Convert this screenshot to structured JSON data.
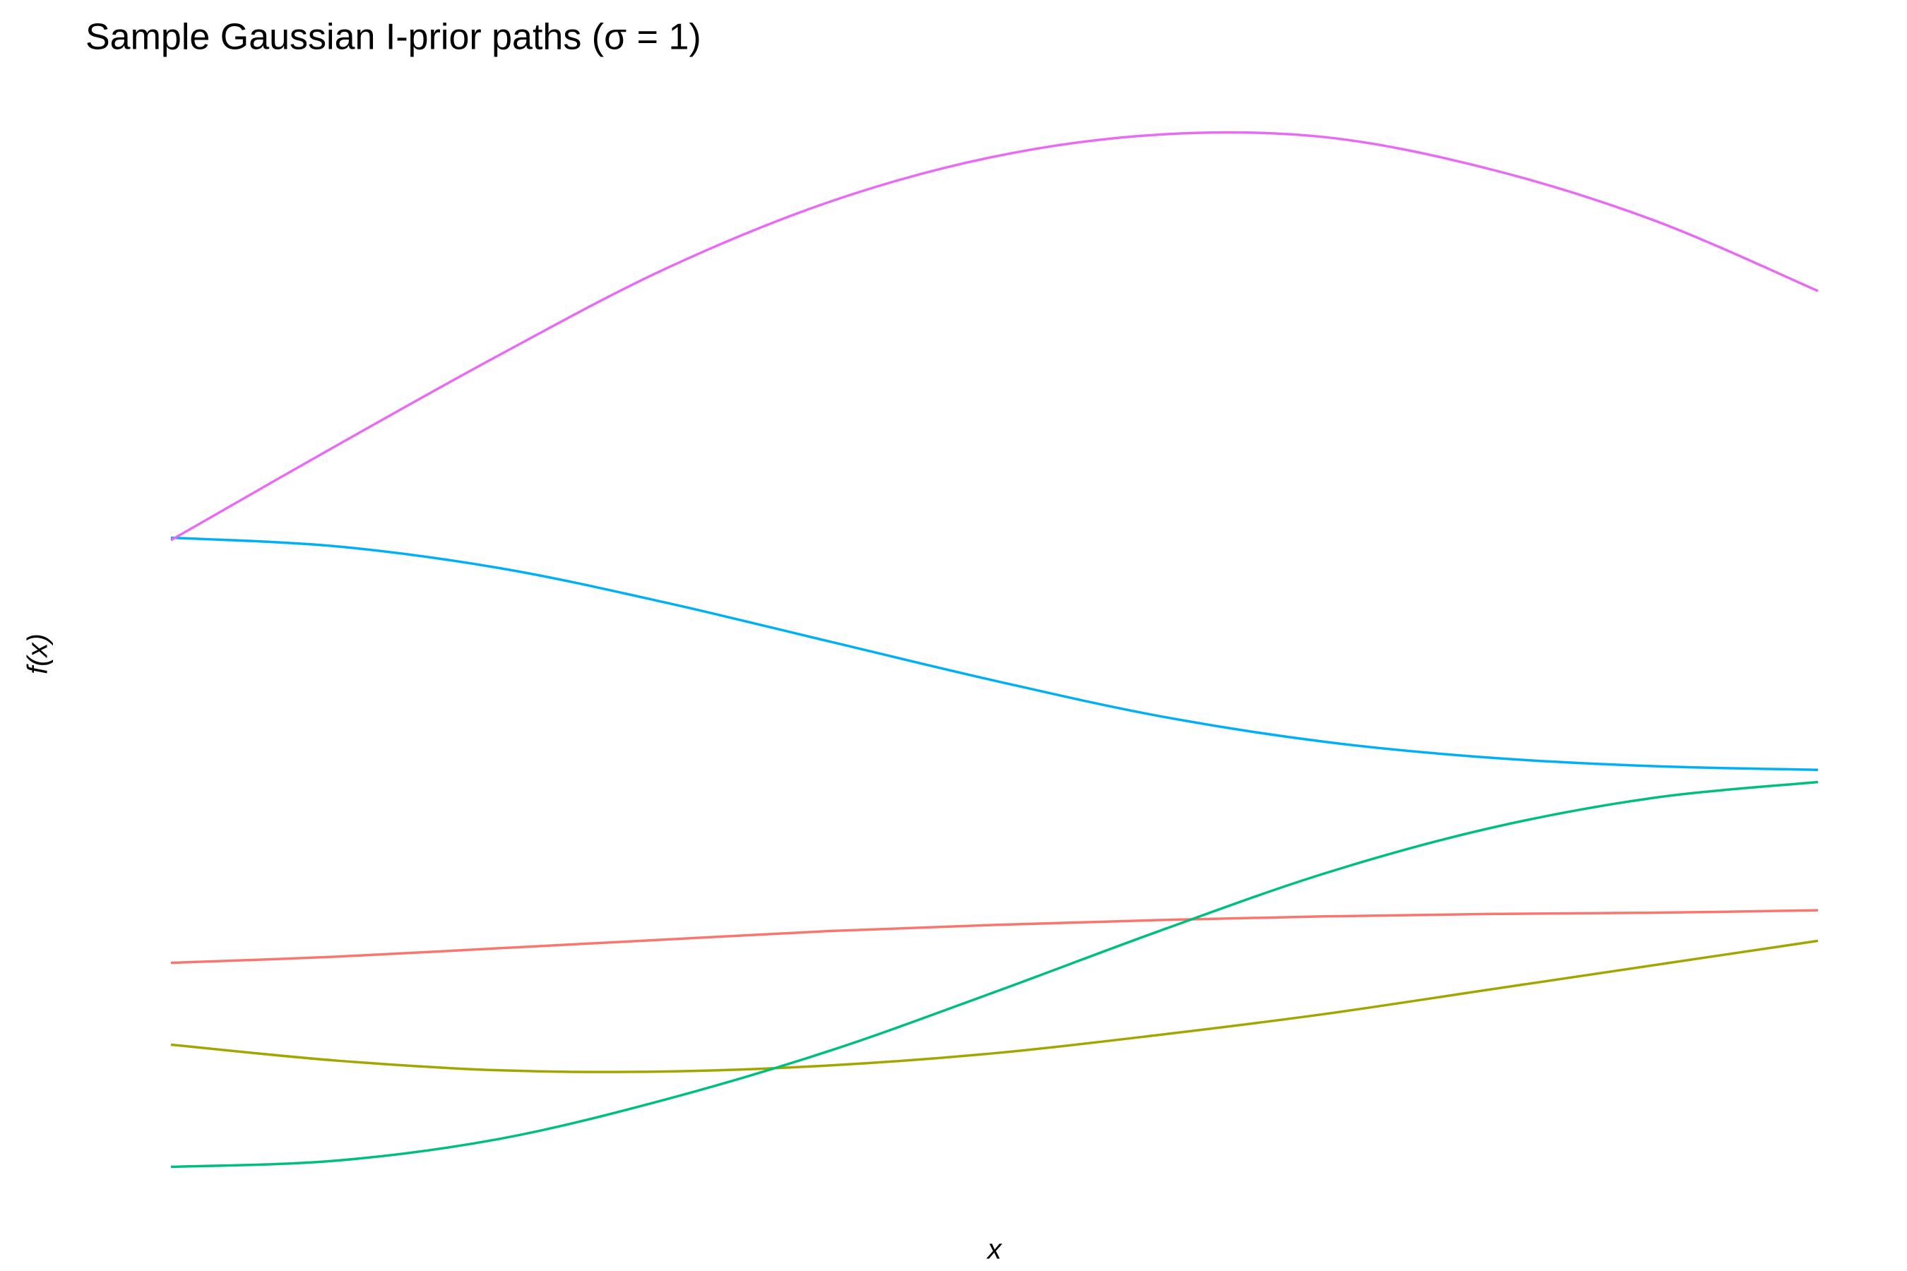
{
  "chart_data": {
    "type": "line",
    "title": "Sample Gaussian I-prior paths (σ = 1)",
    "x_label": "x",
    "y_label": "f(x)",
    "x": [
      0,
      0.1,
      0.2,
      0.3,
      0.4,
      0.5,
      0.6,
      0.7,
      0.8,
      0.9,
      1
    ],
    "xlim": [
      0,
      1
    ],
    "ylim": [
      0,
      9
    ],
    "grid": false,
    "series": [
      {
        "color": "#f8766d",
        "values": [
          2.02,
          2.07,
          2.14,
          2.21,
          2.28,
          2.33,
          2.37,
          2.4,
          2.42,
          2.43,
          2.45
        ]
      },
      {
        "color": "#a3a500",
        "values": [
          1.35,
          1.22,
          1.14,
          1.13,
          1.18,
          1.28,
          1.43,
          1.6,
          1.8,
          2.0,
          2.2
        ]
      },
      {
        "color": "#00bf7d",
        "values": [
          0.35,
          0.4,
          0.58,
          0.9,
          1.3,
          1.78,
          2.28,
          2.75,
          3.12,
          3.37,
          3.5
        ]
      },
      {
        "color": "#00b0f6",
        "values": [
          5.5,
          5.43,
          5.25,
          4.97,
          4.65,
          4.33,
          4.04,
          3.83,
          3.7,
          3.63,
          3.6
        ]
      },
      {
        "color": "#e76bf3",
        "values": [
          5.48,
          6.25,
          7.0,
          7.7,
          8.25,
          8.62,
          8.8,
          8.78,
          8.52,
          8.1,
          7.52
        ]
      }
    ]
  }
}
